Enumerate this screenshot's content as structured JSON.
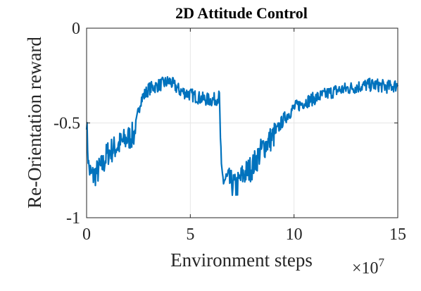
{
  "chart_data": {
    "type": "line",
    "title": "2D Attitude Control",
    "xlabel": "Environment steps",
    "ylabel": "Re-Orientation reward",
    "x_multiplier_label": "×10",
    "x_multiplier_exponent": "7",
    "xlim": [
      0,
      15
    ],
    "ylim": [
      -1,
      0
    ],
    "xticks": [
      0,
      5,
      10,
      15
    ],
    "xtick_labels": [
      "0",
      "5",
      "10",
      "15"
    ],
    "yticks": [
      0,
      -0.5,
      -1
    ],
    "ytick_labels": [
      "0",
      "-0.5",
      "-1"
    ],
    "grid": true,
    "line_color": "#0072BD",
    "series": [
      {
        "x": [
          0,
          0.1,
          0.2,
          0.3,
          0.5,
          0.8,
          1.0,
          1.5,
          2.0,
          2.3,
          2.6,
          3.0,
          3.5,
          4.0,
          4.5,
          5.0,
          5.5,
          6.0,
          6.3,
          6.4,
          6.5,
          6.6,
          6.8,
          7.0,
          7.2,
          7.5,
          8.0,
          8.5,
          9.0,
          9.5,
          10.0,
          10.5,
          11.0,
          11.5,
          12.0,
          12.5,
          13.0,
          13.5,
          14.0,
          14.5,
          15.0
        ],
        "y": [
          -0.5,
          -0.73,
          -0.77,
          -0.78,
          -0.76,
          -0.72,
          -0.66,
          -0.62,
          -0.58,
          -0.56,
          -0.38,
          -0.32,
          -0.3,
          -0.28,
          -0.33,
          -0.35,
          -0.37,
          -0.38,
          -0.37,
          -0.36,
          -0.78,
          -0.8,
          -0.8,
          -0.82,
          -0.84,
          -0.78,
          -0.73,
          -0.63,
          -0.57,
          -0.48,
          -0.42,
          -0.39,
          -0.37,
          -0.35,
          -0.33,
          -0.32,
          -0.31,
          -0.3,
          -0.3,
          -0.31,
          -0.3
        ]
      }
    ]
  }
}
